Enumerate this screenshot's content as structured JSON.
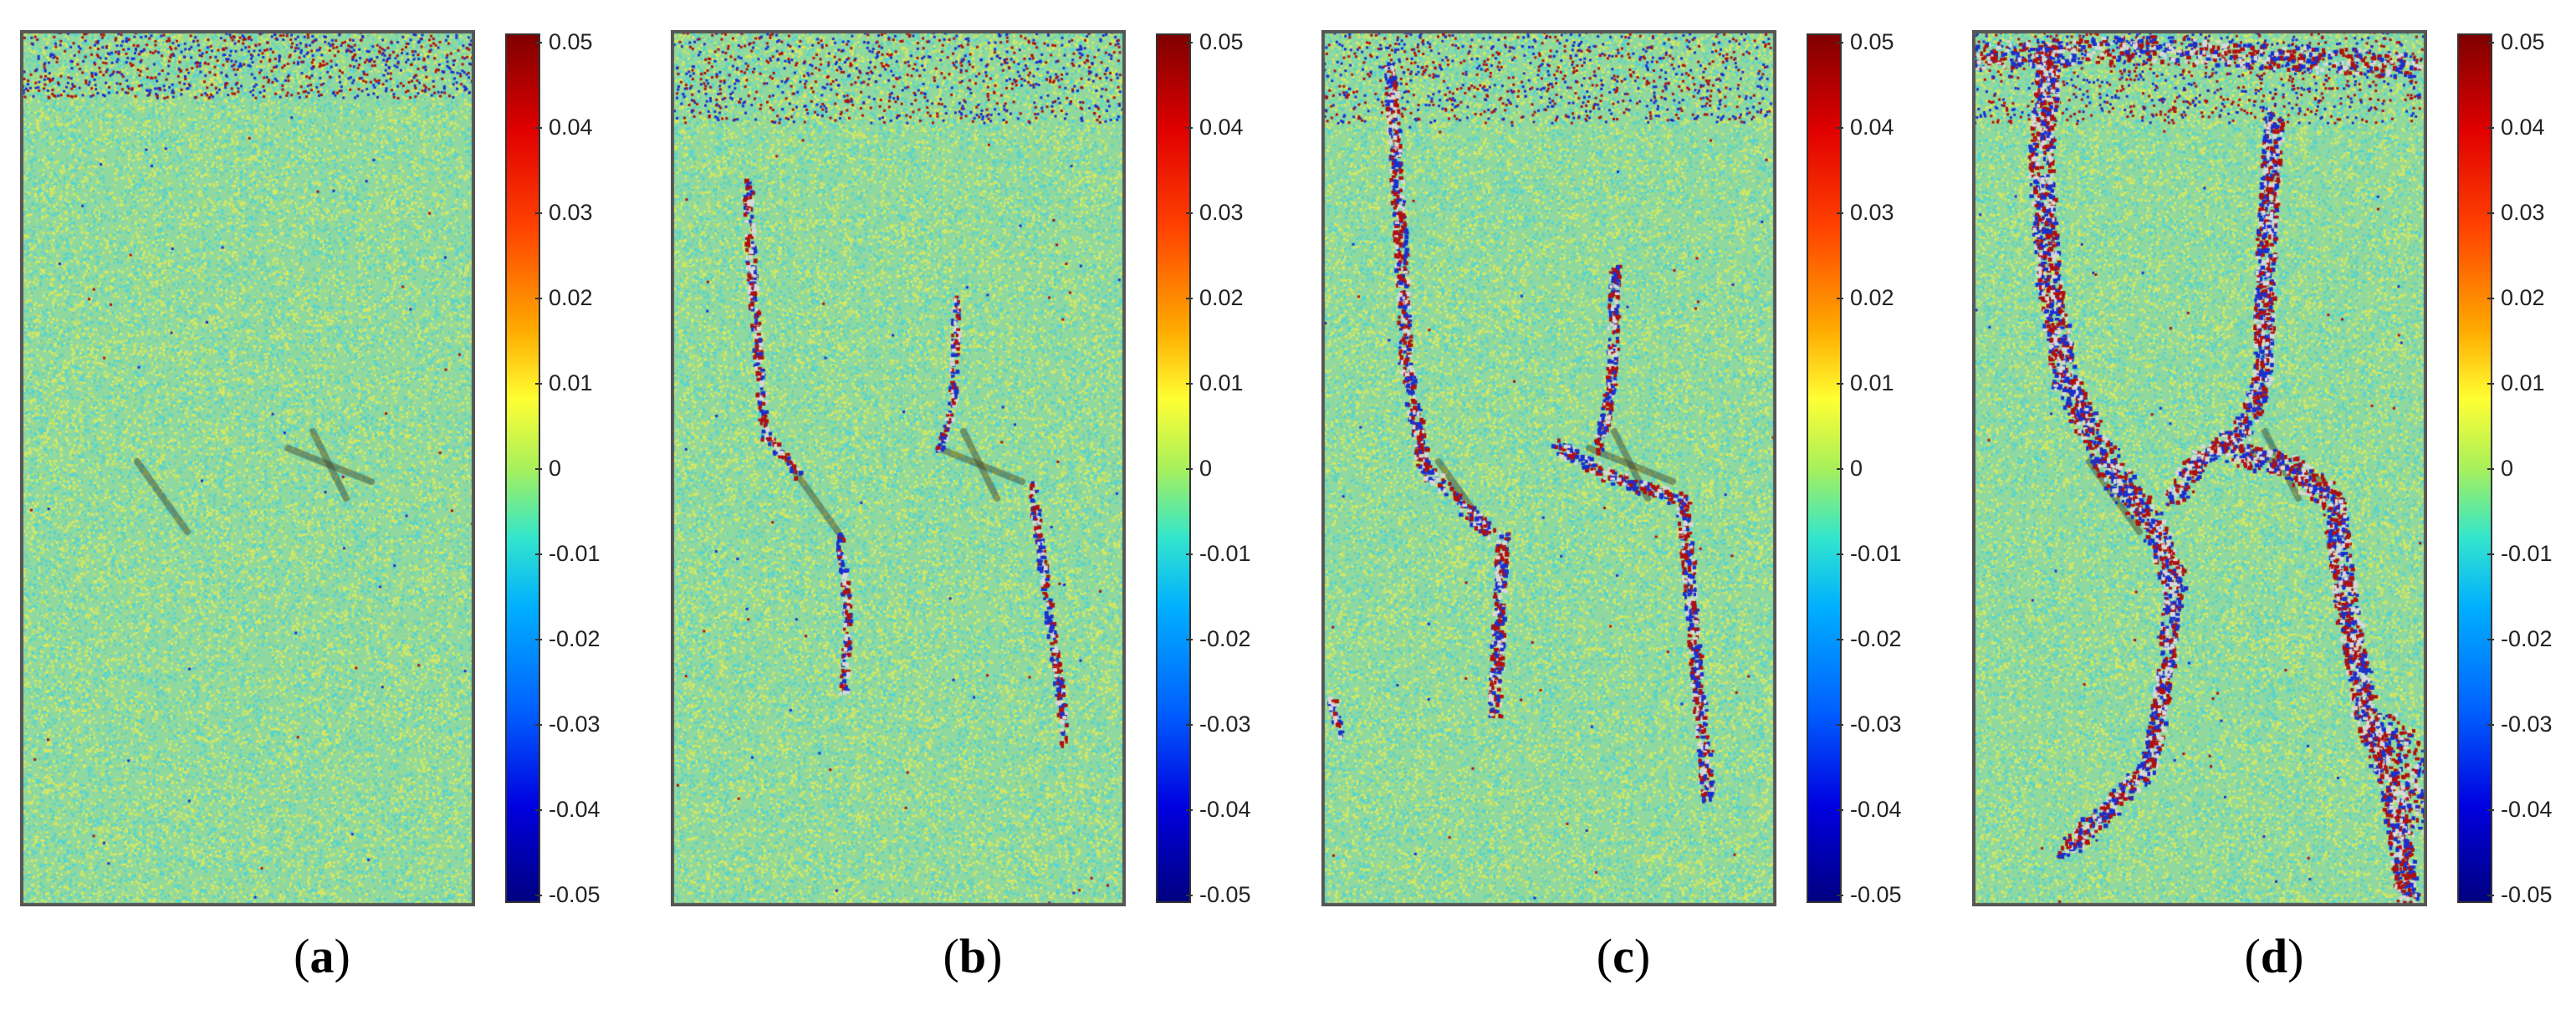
{
  "panels": [
    {
      "caption_open": "(",
      "caption_letter": "a",
      "caption_close": ")",
      "cracks": "none"
    },
    {
      "caption_open": "(",
      "caption_letter": "b",
      "caption_close": ")",
      "cracks": "initial"
    },
    {
      "caption_open": "(",
      "caption_letter": "c",
      "caption_close": ")",
      "cracks": "propagating"
    },
    {
      "caption_open": "(",
      "caption_letter": "d",
      "caption_close": ")",
      "cracks": "wide"
    }
  ],
  "colorbar": {
    "ticks": [
      "0.05",
      "0.04",
      "0.03",
      "0.02",
      "0.01",
      "0",
      "-0.01",
      "-0.02",
      "-0.03",
      "-0.04",
      "-0.05"
    ],
    "colormap": "jet",
    "colors": [
      "#800000",
      "#e00000",
      "#ff4000",
      "#ffaa00",
      "#ffff33",
      "#a8f05a",
      "#33e6cc",
      "#00b0ff",
      "#0060ff",
      "#0000e0",
      "#000080"
    ]
  },
  "colors": {
    "field_base": "#8fd9a0",
    "speckle_yellow": "#d8e860",
    "speckle_cyan": "#52d4d4",
    "crack_red": "#b01010",
    "crack_blue": "#1a2fd0",
    "crack_gray": "#d8d8d8",
    "frame": "#555555"
  }
}
